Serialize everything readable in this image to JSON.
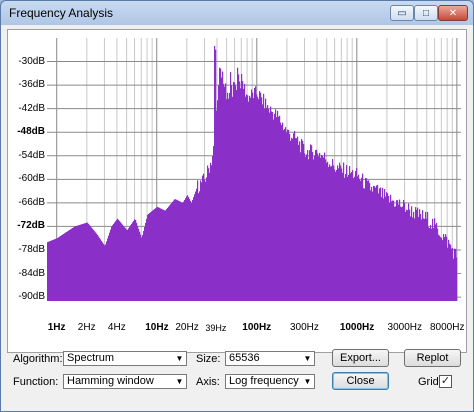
{
  "window": {
    "title": "Frequency Analysis",
    "min_glyph": "▭",
    "max_glyph": "□",
    "close_glyph": "✕"
  },
  "chart_data": {
    "type": "area",
    "title": "",
    "xlabel": "",
    "ylabel": "",
    "x_scale": "log",
    "xlim": [
      0.8,
      11000
    ],
    "ylim": [
      -91,
      -24
    ],
    "grid": true,
    "fill_color": "#8b2fc9",
    "y_ticks": [
      "-30dB",
      "-36dB",
      "-42dB",
      "-48dB",
      "-54dB",
      "-60dB",
      "-66dB",
      "-72dB",
      "-78dB",
      "-84dB",
      "-90dB"
    ],
    "x_ticks": [
      "1Hz",
      "2Hz",
      "4Hz",
      "10Hz",
      "20Hz",
      "39Hz",
      "100Hz",
      "300Hz",
      "1000Hz",
      "3000Hz",
      "8000Hz"
    ],
    "envelope": {
      "x": [
        0.8,
        1,
        1.5,
        2,
        2.5,
        3,
        3.5,
        4,
        5,
        6,
        7,
        8,
        10,
        12,
        15,
        18,
        20,
        22,
        25,
        30,
        35,
        38,
        40,
        45,
        50,
        60,
        70,
        80,
        100,
        130,
        160,
        200,
        250,
        300,
        400,
        500,
        600,
        800,
        1000,
        1300,
        1600,
        2000,
        2500,
        3000,
        4000,
        5000,
        6000,
        7000,
        8000,
        9000,
        10000
      ],
      "y": [
        -76,
        -75,
        -72,
        -71,
        -74,
        -77,
        -72,
        -70,
        -73,
        -70,
        -75,
        -69,
        -67,
        -68,
        -65,
        -66,
        -64,
        -66,
        -62,
        -60,
        -55,
        -50,
        -38,
        -33,
        -40,
        -36,
        -35,
        -39,
        -38,
        -42,
        -44,
        -48,
        -50,
        -53,
        -53,
        -55,
        -57,
        -58,
        -59,
        -62,
        -63,
        -65,
        -66,
        -67,
        -69,
        -70,
        -72,
        -74,
        -76,
        -78,
        -80
      ]
    },
    "peaks": [
      {
        "x": 38,
        "y": -27
      },
      {
        "x": 42,
        "y": -33
      },
      {
        "x": 55,
        "y": -34
      },
      {
        "x": 64,
        "y": -32
      }
    ]
  },
  "controls": {
    "algorithm_label": "Algorithm:",
    "algorithm_value": "Spectrum",
    "function_label": "Function:",
    "function_value": "Hamming window",
    "size_label": "Size:",
    "size_value": "65536",
    "axis_label": "Axis:",
    "axis_value": "Log frequency",
    "export_label": "Export...",
    "replot_label": "Replot",
    "close_label": "Close",
    "grids_label": "Grids",
    "grids_checked": "✓",
    "dropdown_arrow": "▼"
  }
}
